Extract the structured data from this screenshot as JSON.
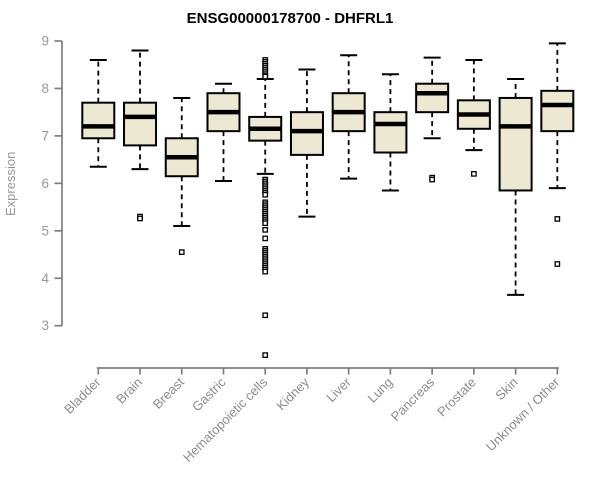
{
  "chart_data": {
    "type": "boxplot",
    "title": "ENSG00000178700 - DHFRL1",
    "xlabel": "",
    "ylabel": "Expression",
    "yticks": [
      3,
      4,
      5,
      6,
      7,
      8,
      9
    ],
    "ylim": [
      2.2,
      9.15
    ],
    "grid": "off",
    "legend": "none",
    "categories": [
      "Bladder",
      "Brain",
      "Breast",
      "Gastric",
      "Hematopoietic cells",
      "Kidney",
      "Liver",
      "Lung",
      "Pancreas",
      "Prostate",
      "Skin",
      "Unknown / Other"
    ],
    "boxes": [
      {
        "category": "Bladder",
        "low": 6.35,
        "q1": 6.95,
        "median": 7.2,
        "q3": 7.7,
        "high": 8.6,
        "outliers": []
      },
      {
        "category": "Brain",
        "low": 6.3,
        "q1": 6.8,
        "median": 7.4,
        "q3": 7.7,
        "high": 8.8,
        "outliers": [
          5.3,
          5.26
        ]
      },
      {
        "category": "Breast",
        "low": 5.1,
        "q1": 6.15,
        "median": 6.55,
        "q3": 6.95,
        "high": 7.8,
        "outliers": [
          4.55
        ]
      },
      {
        "category": "Gastric",
        "low": 6.05,
        "q1": 7.1,
        "median": 7.5,
        "q3": 7.9,
        "high": 8.1,
        "outliers": []
      },
      {
        "category": "Hematopoietic cells",
        "low": 6.2,
        "q1": 6.9,
        "median": 7.15,
        "q3": 7.4,
        "high": 8.2,
        "outliers": [
          8.6,
          8.56,
          8.52,
          8.48,
          8.44,
          8.4,
          8.36,
          8.32,
          8.28,
          8.25,
          6.08,
          6.04,
          6.0,
          5.96,
          5.92,
          5.88,
          5.84,
          5.8,
          5.76,
          5.6,
          5.56,
          5.52,
          5.48,
          5.44,
          5.4,
          5.36,
          5.32,
          5.28,
          5.24,
          5.2,
          5.16,
          5.02,
          4.84,
          4.62,
          4.58,
          4.54,
          4.5,
          4.46,
          4.42,
          4.38,
          4.34,
          4.3,
          4.26,
          4.22,
          4.18,
          4.14,
          3.22,
          2.38
        ]
      },
      {
        "category": "Kidney",
        "low": 5.3,
        "q1": 6.6,
        "median": 7.1,
        "q3": 7.5,
        "high": 8.4,
        "outliers": []
      },
      {
        "category": "Liver",
        "low": 6.1,
        "q1": 7.1,
        "median": 7.5,
        "q3": 7.9,
        "high": 8.7,
        "outliers": []
      },
      {
        "category": "Lung",
        "low": 5.85,
        "q1": 6.65,
        "median": 7.25,
        "q3": 7.5,
        "high": 8.3,
        "outliers": []
      },
      {
        "category": "Pancreas",
        "low": 6.95,
        "q1": 7.5,
        "median": 7.9,
        "q3": 8.1,
        "high": 8.65,
        "outliers": [
          6.12,
          6.08
        ]
      },
      {
        "category": "Prostate",
        "low": 6.7,
        "q1": 7.15,
        "median": 7.45,
        "q3": 7.75,
        "high": 8.6,
        "outliers": [
          6.2
        ]
      },
      {
        "category": "Skin",
        "low": 3.65,
        "q1": 5.85,
        "median": 7.2,
        "q3": 7.8,
        "high": 8.2,
        "outliers": []
      },
      {
        "category": "Unknown / Other",
        "low": 5.9,
        "q1": 7.1,
        "median": 7.65,
        "q3": 7.95,
        "high": 8.95,
        "outliers": [
          5.25,
          4.3
        ]
      }
    ],
    "colors": {
      "box_fill": "#ede8d1",
      "box_stroke": "#000000",
      "median": "#000000",
      "whisker": "#000000",
      "axis": "#7f7f7f",
      "tick_label": "#999999",
      "category_label": "#8c8c8c",
      "title": "#000000",
      "background": "#ffffff"
    }
  }
}
